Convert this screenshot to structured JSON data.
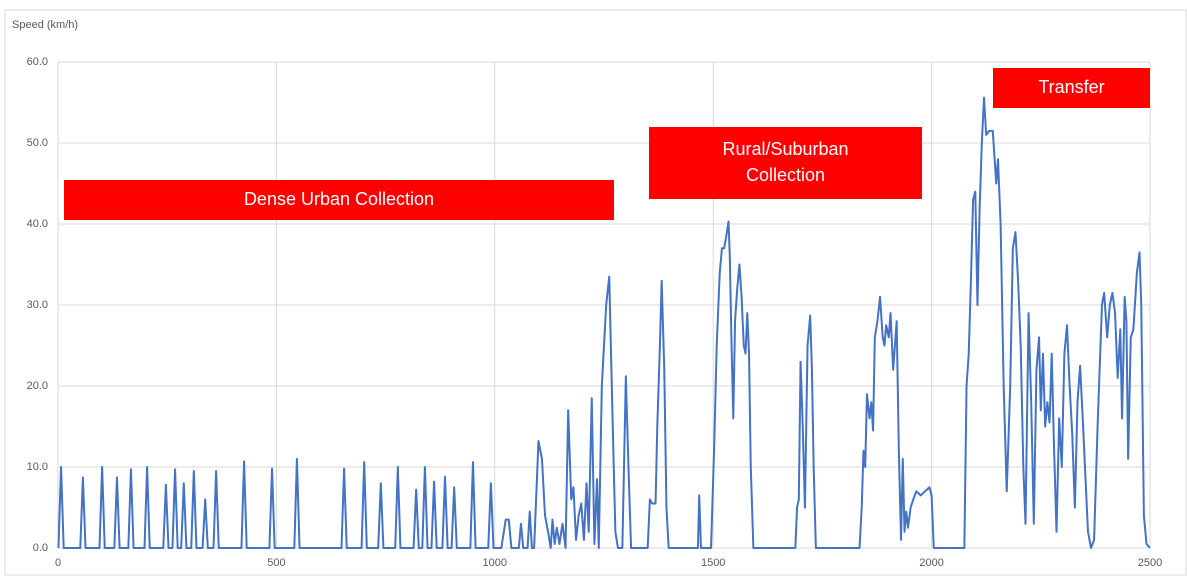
{
  "chart_data": {
    "type": "line",
    "y_label": "Speed (km/h)",
    "annotations": [
      [
        "Dense Urban Collection"
      ],
      [
        "Rural/Suburban",
        "Collection"
      ],
      [
        "Transfer"
      ]
    ],
    "color": "#4472c4",
    "grid": true,
    "xlim": [
      0,
      2500
    ],
    "xticks": [
      0,
      500,
      1000,
      1500,
      2000,
      2500
    ],
    "ylim": [
      0,
      60
    ],
    "yticks": [
      {
        "value": 0,
        "label": "0.0"
      },
      {
        "value": 10,
        "label": "10.0"
      },
      {
        "value": 20,
        "label": "20.0"
      },
      {
        "value": 30,
        "label": "30.0"
      },
      {
        "value": 40,
        "label": "40.0"
      },
      {
        "value": 50,
        "label": "50.0"
      },
      {
        "value": 60,
        "label": "60.0"
      }
    ],
    "x": [
      1,
      7,
      13,
      51,
      57,
      63,
      95,
      101,
      107,
      129,
      135,
      141,
      161,
      167,
      173,
      198,
      204,
      210,
      241,
      247,
      253,
      262,
      268,
      274,
      282,
      288,
      294,
      305,
      311,
      317,
      331,
      337,
      343,
      356,
      362,
      368,
      420,
      426,
      432,
      484,
      490,
      496,
      541,
      547,
      553,
      649,
      655,
      661,
      695,
      701,
      707,
      733,
      739,
      745,
      772,
      778,
      784,
      814,
      820,
      826,
      834,
      840,
      846,
      855,
      861,
      867,
      880,
      886,
      892,
      901,
      907,
      913,
      944,
      950,
      956,
      985,
      991,
      997,
      1015,
      1025,
      1032,
      1038,
      1055,
      1060,
      1065,
      1075,
      1080,
      1085,
      1090,
      1100,
      1108,
      1115,
      1122,
      1128,
      1132,
      1137,
      1142,
      1148,
      1155,
      1162,
      1168,
      1175,
      1180,
      1186,
      1192,
      1198,
      1204,
      1210,
      1215,
      1222,
      1228,
      1234,
      1238,
      1245,
      1255,
      1262,
      1270,
      1276,
      1282,
      1292,
      1300,
      1306,
      1312,
      1350,
      1355,
      1360,
      1368,
      1372,
      1378,
      1382,
      1388,
      1393,
      1398,
      1465,
      1468,
      1472,
      1495,
      1502,
      1508,
      1515,
      1520,
      1525,
      1530,
      1535,
      1538,
      1542,
      1546,
      1550,
      1555,
      1560,
      1565,
      1570,
      1574,
      1578,
      1582,
      1586,
      1592,
      1688,
      1692,
      1696,
      1700,
      1705,
      1710,
      1716,
      1722,
      1726,
      1730,
      1735,
      1835,
      1840,
      1844,
      1848,
      1852,
      1858,
      1862,
      1866,
      1870,
      1876,
      1882,
      1888,
      1892,
      1896,
      1902,
      1906,
      1912,
      1916,
      1920,
      1925,
      1930,
      1934,
      1938,
      1942,
      1946,
      1952,
      1958,
      1965,
      1975,
      1985,
      1995,
      2000,
      2005,
      2075,
      2080,
      2085,
      2090,
      2095,
      2100,
      2105,
      2110,
      2115,
      2120,
      2125,
      2132,
      2140,
      2148,
      2152,
      2158,
      2165,
      2172,
      2180,
      2186,
      2192,
      2198,
      2204,
      2210,
      2215,
      2222,
      2228,
      2234,
      2240,
      2246,
      2250,
      2255,
      2260,
      2265,
      2270,
      2275,
      2280,
      2286,
      2292,
      2298,
      2304,
      2310,
      2316,
      2322,
      2328,
      2334,
      2340,
      2346,
      2352,
      2358,
      2365,
      2372,
      2380,
      2390,
      2395,
      2402,
      2408,
      2414,
      2420,
      2426,
      2432,
      2436,
      2442,
      2446,
      2450,
      2456,
      2462,
      2470,
      2476,
      2480,
      2486,
      2492,
      2500
    ],
    "values": [
      0,
      10,
      0,
      0,
      8.7,
      0,
      0,
      10,
      0,
      0,
      8.7,
      0,
      0,
      9.7,
      0,
      0,
      10,
      0,
      0,
      7.8,
      0,
      0,
      9.7,
      0,
      0,
      8,
      0,
      0,
      9.5,
      0,
      0,
      6,
      0,
      0,
      9.5,
      0,
      0,
      10.7,
      0,
      0,
      9.8,
      0,
      0,
      11,
      0,
      0,
      9.8,
      0,
      0,
      10.6,
      0,
      0,
      8,
      0,
      0,
      10,
      0,
      0,
      7.2,
      0,
      0,
      10,
      0,
      0,
      8.2,
      0,
      0,
      8.8,
      0,
      0,
      7.5,
      0,
      0,
      10.6,
      0,
      0,
      8,
      0,
      0,
      3.5,
      3.5,
      0,
      0,
      3,
      0,
      0,
      4.5,
      0,
      0,
      13.2,
      11,
      4,
      2,
      0,
      3.5,
      0.5,
      2.5,
      0.5,
      3,
      0,
      17,
      6,
      7.5,
      1,
      4,
      5.5,
      1,
      8,
      2,
      18.5,
      0.5,
      8.5,
      0,
      20,
      30,
      33.5,
      15,
      2,
      0,
      0,
      21.2,
      10,
      0,
      0,
      6,
      5.5,
      5.5,
      15,
      25,
      33,
      22,
      5,
      0,
      0,
      6.5,
      0,
      0,
      12,
      25,
      34,
      37,
      37,
      38.5,
      40.3,
      36,
      25,
      16,
      28,
      32,
      35,
      31,
      25,
      24,
      29,
      24,
      10,
      0,
      0,
      5,
      6,
      23,
      15,
      5,
      25,
      28.7,
      22,
      10,
      0,
      0,
      5,
      12,
      10,
      19,
      16,
      18,
      14.5,
      26,
      28,
      31,
      26,
      25,
      27.5,
      26,
      29,
      22,
      25,
      28,
      12,
      1,
      11,
      2,
      4.5,
      2.5,
      5,
      6,
      7,
      6.5,
      7,
      7.5,
      6.5,
      0,
      0,
      20,
      24,
      33,
      43,
      44,
      30,
      42,
      50,
      55.6,
      51,
      51.5,
      51.5,
      45,
      48,
      40,
      20,
      7,
      20,
      37,
      39,
      33,
      25,
      10,
      3,
      29,
      18,
      3,
      22,
      26,
      17,
      24,
      15,
      18,
      15.5,
      24,
      13,
      2,
      16,
      10,
      24,
      27.5,
      20,
      14,
      5,
      18,
      22.5,
      16,
      9,
      2,
      0,
      1,
      15,
      30,
      31.5,
      26,
      30,
      31.5,
      29,
      21,
      27,
      16,
      31,
      28,
      11,
      26,
      27,
      34,
      36.5,
      30,
      4,
      0.5,
      0
    ]
  }
}
